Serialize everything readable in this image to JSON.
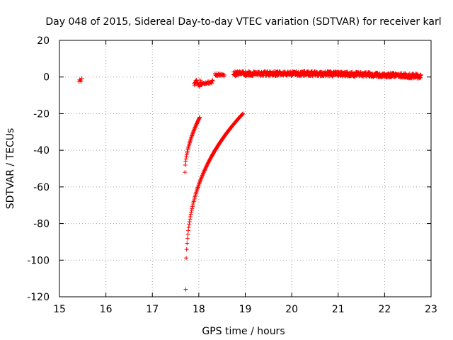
{
  "chart_data": {
    "type": "scatter",
    "title": "Day 048 of 2015, Sidereal Day-to-day VTEC variation (SDTVAR) for receiver karl",
    "xlabel": "GPS time / hours",
    "ylabel": "SDTVAR / TECUs",
    "xlim": [
      15,
      23
    ],
    "ylim": [
      -120,
      20
    ],
    "xticks": [
      15,
      16,
      17,
      18,
      19,
      20,
      21,
      22,
      23
    ],
    "yticks": [
      20,
      0,
      -20,
      -40,
      -60,
      -80,
      -100,
      -120
    ],
    "grid": true,
    "marker": "+",
    "series": [
      {
        "name": "SDTVAR",
        "color": "#ff0000",
        "segments": [
          {
            "kind": "cluster",
            "x_start": 15.42,
            "x_end": 15.48,
            "step": 0.015,
            "y_base": -1.0,
            "y_spread": 3.0
          },
          {
            "kind": "recovery_curve",
            "x_start": 17.7,
            "x_end": 18.02,
            "step": 0.008,
            "y_start": -52,
            "y_end": -22,
            "exponent": 0.55
          },
          {
            "kind": "recovery_curve",
            "x_start": 17.72,
            "x_end": 18.95,
            "step": 0.009,
            "y_start": -116,
            "y_end": -20,
            "exponent": 0.35
          },
          {
            "kind": "cluster",
            "x_start": 17.9,
            "x_end": 18.05,
            "step": 0.008,
            "y_base": -3.5,
            "y_spread": 4.0
          },
          {
            "kind": "ramp",
            "x_start": 18.05,
            "x_end": 18.3,
            "step": 0.01,
            "y_start": -4.0,
            "y_end": -2.5,
            "y_spread": 1.8
          },
          {
            "kind": "cluster",
            "x_start": 18.35,
            "x_end": 18.55,
            "step": 0.01,
            "y_base": 1.2,
            "y_spread": 1.6
          },
          {
            "kind": "band",
            "x_start": 18.75,
            "x_end": 22.78,
            "step": 0.01,
            "y_base": 1.8,
            "y_spread": 2.6,
            "y_end_base": 0.5
          }
        ]
      }
    ]
  }
}
